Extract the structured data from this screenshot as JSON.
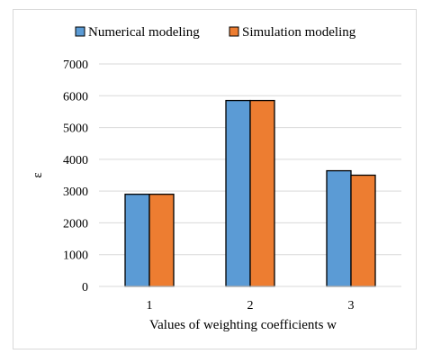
{
  "chart_data": {
    "type": "bar",
    "categories": [
      "1",
      "2",
      "3"
    ],
    "series": [
      {
        "name": "Numerical modeling",
        "values": [
          2900,
          5850,
          3640
        ],
        "color": "#5b9bd5"
      },
      {
        "name": "Simulation modeling",
        "values": [
          2900,
          5850,
          3500
        ],
        "color": "#ed7d31"
      }
    ],
    "title": "",
    "xlabel": "Values of weighting coefficients w",
    "ylabel": "ε",
    "ylim": [
      0,
      7000
    ],
    "yticks": [
      0,
      1000,
      2000,
      3000,
      4000,
      5000,
      6000,
      7000
    ],
    "grid": true,
    "legend_position": "top"
  }
}
